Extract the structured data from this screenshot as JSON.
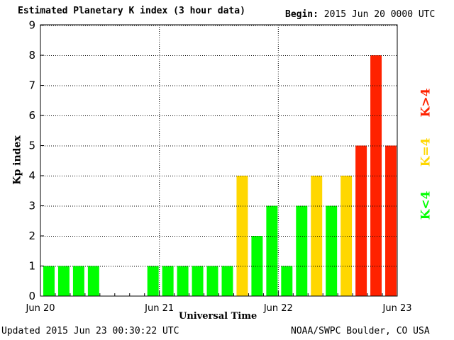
{
  "chart_data": {
    "type": "bar",
    "title": "Estimated Planetary K index (3 hour data)",
    "begin_label": "Begin:",
    "begin_value": "2015 Jun 20 0000 UTC",
    "xlabel": "Universal Time",
    "ylabel": "Kp index",
    "ylim": [
      0,
      9
    ],
    "yticks": [
      "0",
      "1",
      "2",
      "3",
      "4",
      "5",
      "6",
      "7",
      "8",
      "9"
    ],
    "xticks": [
      "Jun 20",
      "Jun 21",
      "Jun 22",
      "Jun 23"
    ],
    "grid": true,
    "interval_hours": 3,
    "values": [
      1,
      1,
      1,
      1,
      null,
      null,
      null,
      1,
      1,
      1,
      1,
      1,
      1,
      4,
      2,
      3,
      1,
      3,
      4,
      3,
      4,
      5,
      8,
      5
    ],
    "legend": [
      {
        "label": "K<4",
        "color": "#00ff00"
      },
      {
        "label": "K=4",
        "color": "#ffd700"
      },
      {
        "label": "K>4",
        "color": "#ff2200"
      }
    ],
    "legend_placement": "right"
  },
  "footer": {
    "updated": "Updated 2015 Jun 23 00:30:22 UTC",
    "credit": "NOAA/SWPC Boulder, CO USA"
  }
}
